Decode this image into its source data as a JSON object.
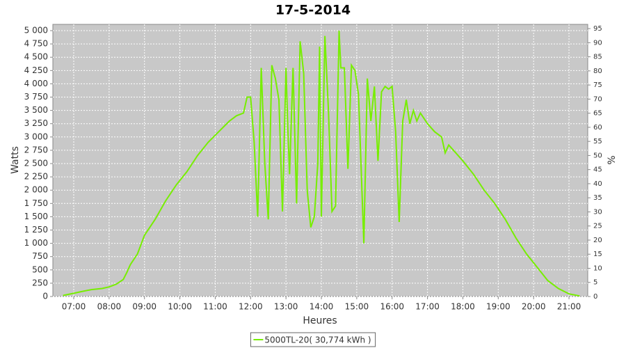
{
  "chart_data": {
    "type": "line",
    "title": "17-5-2014",
    "x_label": "Heures",
    "y_label": "Watts",
    "y2_label": "%",
    "x": [
      6.7,
      7.0,
      7.2,
      7.5,
      7.8,
      8.0,
      8.2,
      8.4,
      8.5,
      8.6,
      8.8,
      9.0,
      9.3,
      9.6,
      9.9,
      10.2,
      10.5,
      10.8,
      11.1,
      11.4,
      11.6,
      11.8,
      11.9,
      12.0,
      12.1,
      12.2,
      12.3,
      12.4,
      12.5,
      12.6,
      12.7,
      12.8,
      12.9,
      13.0,
      13.05,
      13.1,
      13.2,
      13.3,
      13.4,
      13.5,
      13.6,
      13.7,
      13.8,
      13.9,
      13.95,
      14.0,
      14.1,
      14.2,
      14.3,
      14.4,
      14.5,
      14.55,
      14.65,
      14.75,
      14.85,
      14.95,
      15.05,
      15.2,
      15.3,
      15.4,
      15.5,
      15.6,
      15.7,
      15.8,
      15.9,
      16.0,
      16.1,
      16.2,
      16.3,
      16.4,
      16.5,
      16.6,
      16.7,
      16.8,
      16.9,
      17.0,
      17.2,
      17.4,
      17.5,
      17.6,
      17.8,
      18.0,
      18.3,
      18.6,
      18.9,
      19.2,
      19.5,
      19.8,
      20.1,
      20.4,
      20.7,
      21.0,
      21.3
    ],
    "series": [
      {
        "name": "5000TL-20( 30,774 kWh )",
        "color": "#77ee00",
        "values": [
          20,
          60,
          90,
          130,
          150,
          180,
          230,
          320,
          450,
          600,
          800,
          1150,
          1450,
          1800,
          2100,
          2350,
          2650,
          2900,
          3100,
          3300,
          3400,
          3450,
          3750,
          3750,
          2900,
          1500,
          4300,
          2500,
          1450,
          4350,
          4100,
          3700,
          1600,
          4300,
          3200,
          2300,
          4300,
          1750,
          4800,
          4200,
          2000,
          1300,
          1500,
          2500,
          4700,
          1500,
          4900,
          3500,
          1600,
          1700,
          5000,
          4300,
          4300,
          2400,
          4350,
          4250,
          3800,
          1000,
          4100,
          3300,
          3950,
          2550,
          3850,
          3950,
          3900,
          3950,
          3100,
          1400,
          3300,
          3700,
          3250,
          3500,
          3300,
          3450,
          3350,
          3250,
          3100,
          3000,
          2700,
          2850,
          2700,
          2550,
          2300,
          2000,
          1750,
          1450,
          1100,
          800,
          550,
          300,
          150,
          50,
          10
        ]
      }
    ],
    "xlim": [
      6.41,
      21.53
    ],
    "xticks": [
      {
        "value": 7,
        "label": "07:00"
      },
      {
        "value": 8,
        "label": "08:00"
      },
      {
        "value": 9,
        "label": "09:00"
      },
      {
        "value": 10,
        "label": "10:00"
      },
      {
        "value": 11,
        "label": "11:00"
      },
      {
        "value": 12,
        "label": "12:00"
      },
      {
        "value": 13,
        "label": "13:00"
      },
      {
        "value": 14,
        "label": "14:00"
      },
      {
        "value": 15,
        "label": "15:00"
      },
      {
        "value": 16,
        "label": "16:00"
      },
      {
        "value": 17,
        "label": "17:00"
      },
      {
        "value": 18,
        "label": "18:00"
      },
      {
        "value": 19,
        "label": "19:00"
      },
      {
        "value": 20,
        "label": "20:00"
      },
      {
        "value": 21,
        "label": "21:00"
      }
    ],
    "ylim": [
      0,
      5118
    ],
    "yticks": [
      0,
      250,
      500,
      750,
      {
        "value": 1000,
        "label": "1 000"
      },
      {
        "value": 1250,
        "label": "1 250"
      },
      {
        "value": 1500,
        "label": "1 500"
      },
      {
        "value": 1750,
        "label": "1 750"
      },
      {
        "value": 2000,
        "label": "2 000"
      },
      {
        "value": 2250,
        "label": "2 250"
      },
      {
        "value": 2500,
        "label": "2 500"
      },
      {
        "value": 2750,
        "label": "2 750"
      },
      {
        "value": 3000,
        "label": "3 000"
      },
      {
        "value": 3250,
        "label": "3 250"
      },
      {
        "value": 3500,
        "label": "3 500"
      },
      {
        "value": 3750,
        "label": "3 750"
      },
      {
        "value": 4000,
        "label": "4 000"
      },
      {
        "value": 4250,
        "label": "4 250"
      },
      {
        "value": 4500,
        "label": "4 500"
      },
      {
        "value": 4750,
        "label": "4 750"
      },
      {
        "value": 5000,
        "label": "5 000"
      }
    ],
    "y2lim": [
      0,
      96.5
    ],
    "y2ticks": [
      0,
      5,
      10,
      15,
      20,
      25,
      30,
      35,
      40,
      45,
      50,
      55,
      60,
      65,
      70,
      75,
      80,
      85,
      90,
      95
    ],
    "grid": true,
    "legend": "bottom",
    "plot_background": "#c8c8c8"
  }
}
